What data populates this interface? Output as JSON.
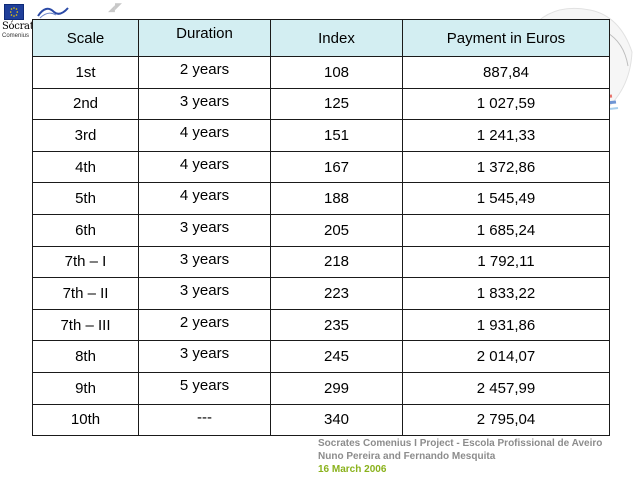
{
  "logo": {
    "brand": "Sócrates",
    "program": "Comenius"
  },
  "table": {
    "headers": [
      "Scale",
      "Duration",
      "Index",
      "Payment in Euros"
    ],
    "rows": [
      [
        "1st",
        "2 years",
        "108",
        "887,84"
      ],
      [
        "2nd",
        "3 years",
        "125",
        "1 027,59"
      ],
      [
        "3rd",
        "4 years",
        "151",
        "1 241,33"
      ],
      [
        "4th",
        "4 years",
        "167",
        "1 372,86"
      ],
      [
        "5th",
        "4 years",
        "188",
        "1 545,49"
      ],
      [
        "6th",
        "3 years",
        "205",
        "1 685,24"
      ],
      [
        "7th – I",
        "3 years",
        "218",
        "1 792,11"
      ],
      [
        "7th – II",
        "3 years",
        "223",
        "1 833,22"
      ],
      [
        "7th – III",
        "2 years",
        "235",
        "1 931,86"
      ],
      [
        "8th",
        "3 years",
        "245",
        "2 014,07"
      ],
      [
        "9th",
        "5 years",
        "299",
        "2 457,99"
      ],
      [
        "10th",
        "---",
        "340",
        "2 795,04"
      ]
    ]
  },
  "footer": {
    "line1": "Socrates Comenius I Project - Escola Profissional de Aveiro",
    "line2": "Nuno Pereira and Fernando Mesquita",
    "line3": "16 March 2006",
    "line3_color": "#8ab21c"
  },
  "colors": {
    "header_bg": "#d3eef2",
    "border": "#1a1a1a"
  }
}
